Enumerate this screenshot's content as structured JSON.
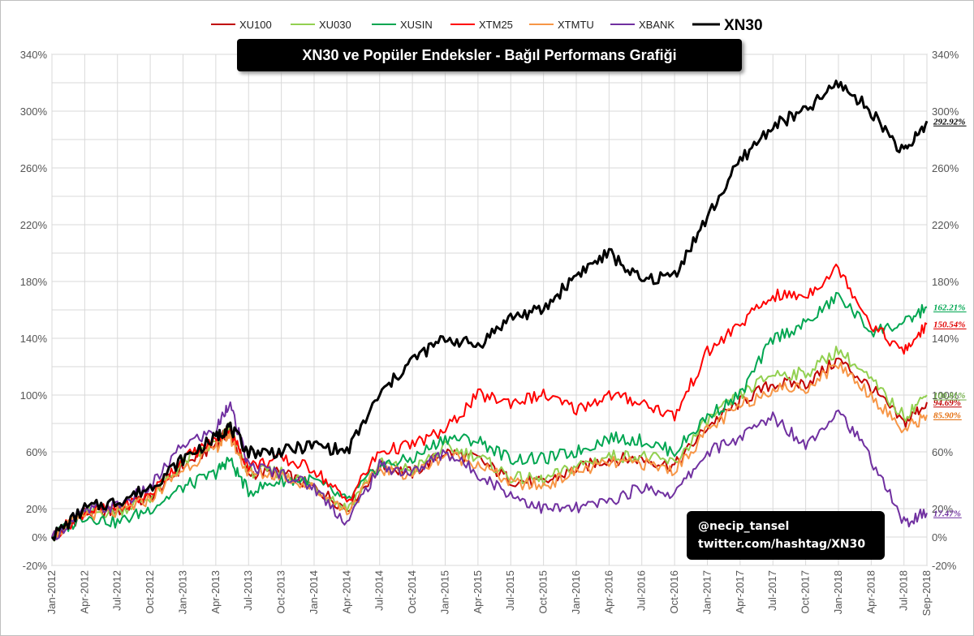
{
  "chart_data": {
    "type": "line",
    "title": "XN30 ve Popüler Endeksler - Bağıl Performans Grafiği",
    "xlabel": "",
    "ylabel": "",
    "ylim": [
      -20,
      340
    ],
    "y_ticks": [
      "-20%",
      "0%",
      "20%",
      "60%",
      "100%",
      "140%",
      "180%",
      "220%",
      "260%",
      "300%",
      "340%"
    ],
    "y_tick_values": [
      -20,
      0,
      20,
      60,
      100,
      140,
      180,
      220,
      260,
      300,
      340
    ],
    "y_grid_values": [
      -20,
      0,
      20,
      40,
      60,
      80,
      100,
      120,
      140,
      160,
      180,
      200,
      220,
      240,
      260,
      280,
      300,
      320,
      340
    ],
    "x_ticks": [
      "Jan-2012",
      "Apr-2012",
      "Jul-2012",
      "Oct-2012",
      "Jan-2013",
      "Apr-2013",
      "Jul-2013",
      "Oct-2013",
      "Jan-2014",
      "Apr-2014",
      "Jul-2014",
      "Oct-2014",
      "Jan-2015",
      "Apr-2015",
      "Jul-2015",
      "Oct-2015",
      "Jan-2016",
      "Apr-2016",
      "Jul-2016",
      "Oct-2016",
      "Jan-2017",
      "Apr-2017",
      "Jul-2017",
      "Oct-2017",
      "Jan-2018",
      "Apr-2018",
      "Jul-2018",
      "Sep-2018"
    ],
    "x_tick_positions": [
      0,
      1,
      2,
      3,
      4,
      5,
      6,
      7,
      8,
      9,
      10,
      11,
      12,
      13,
      14,
      15,
      16,
      17,
      18,
      19,
      20,
      21,
      22,
      23,
      24,
      25,
      26,
      26.7
    ],
    "grid": true,
    "legend_position": "top",
    "series": [
      {
        "name": "XU100",
        "color": "#c00000",
        "end_label": "94.69%",
        "end_color": "#c00000",
        "x": [
          0,
          1,
          2,
          3,
          4,
          5,
          5.4,
          6,
          7,
          8,
          9,
          10,
          11,
          12,
          13,
          14,
          15,
          16,
          17,
          18,
          19,
          20,
          21,
          22,
          23,
          24,
          25,
          26,
          26.7
        ],
        "y": [
          0,
          17,
          18,
          28,
          50,
          65,
          75,
          45,
          45,
          35,
          20,
          50,
          45,
          60,
          55,
          40,
          38,
          48,
          55,
          55,
          50,
          78,
          95,
          108,
          108,
          125,
          105,
          80,
          95
        ]
      },
      {
        "name": "XU030",
        "color": "#92d050",
        "end_label": "100.81%",
        "end_color": "#70ad47",
        "x": [
          0,
          1,
          2,
          3,
          4,
          5,
          5.4,
          6,
          7,
          8,
          9,
          10,
          11,
          12,
          13,
          14,
          15,
          16,
          17,
          18,
          19,
          20,
          21,
          22,
          23,
          24,
          25,
          26,
          26.7
        ],
        "y": [
          0,
          17,
          18,
          28,
          52,
          66,
          76,
          46,
          46,
          36,
          20,
          52,
          47,
          63,
          57,
          42,
          40,
          50,
          57,
          57,
          52,
          82,
          100,
          115,
          115,
          132,
          110,
          85,
          100
        ]
      },
      {
        "name": "XUSIN",
        "color": "#00a651",
        "end_label": "162.21%",
        "end_color": "#00a651",
        "x": [
          0,
          1,
          2,
          3,
          4,
          5,
          5.4,
          6,
          7,
          8,
          9,
          10,
          11,
          12,
          13,
          14,
          15,
          16,
          17,
          18,
          19,
          20,
          21,
          22,
          23,
          24,
          25,
          26,
          26.7
        ],
        "y": [
          0,
          15,
          10,
          20,
          35,
          45,
          55,
          32,
          40,
          40,
          25,
          50,
          55,
          70,
          68,
          55,
          55,
          60,
          70,
          68,
          60,
          85,
          100,
          140,
          150,
          170,
          145,
          150,
          162
        ]
      },
      {
        "name": "XTM25",
        "color": "#ff0000",
        "end_label": "150.54%",
        "end_color": "#e00000",
        "x": [
          0,
          1,
          2,
          3,
          4,
          5,
          5.4,
          6,
          7,
          8,
          9,
          10,
          11,
          12,
          13,
          14,
          15,
          16,
          17,
          18,
          19,
          20,
          21,
          22,
          23,
          24,
          25,
          26,
          26.7
        ],
        "y": [
          0,
          18,
          20,
          30,
          55,
          68,
          75,
          50,
          55,
          48,
          25,
          60,
          65,
          75,
          100,
          95,
          100,
          90,
          100,
          95,
          85,
          130,
          150,
          170,
          170,
          190,
          150,
          130,
          150
        ]
      },
      {
        "name": "XTMTU",
        "color": "#f79646",
        "end_label": "85.90%",
        "end_color": "#e46c0a",
        "x": [
          0,
          1,
          2,
          3,
          4,
          5,
          5.4,
          6,
          7,
          8,
          9,
          10,
          11,
          12,
          13,
          14,
          15,
          16,
          17,
          18,
          19,
          20,
          21,
          22,
          23,
          24,
          25,
          26,
          26.7
        ],
        "y": [
          0,
          16,
          17,
          27,
          48,
          63,
          72,
          44,
          44,
          34,
          18,
          48,
          44,
          58,
          52,
          38,
          36,
          46,
          52,
          52,
          47,
          75,
          92,
          105,
          105,
          122,
          100,
          75,
          86
        ]
      },
      {
        "name": "XBANK",
        "color": "#7030a0",
        "end_label": "17.47%",
        "end_color": "#7030a0",
        "x": [
          0,
          1,
          2,
          3,
          4,
          5,
          5.4,
          6,
          7,
          8,
          9,
          10,
          11,
          12,
          13,
          14,
          15,
          16,
          17,
          18,
          19,
          20,
          21,
          22,
          23,
          24,
          25,
          26,
          26.7
        ],
        "y": [
          0,
          18,
          22,
          35,
          65,
          75,
          95,
          50,
          45,
          35,
          10,
          50,
          45,
          60,
          45,
          30,
          20,
          20,
          25,
          35,
          30,
          60,
          70,
          85,
          65,
          90,
          55,
          10,
          17
        ]
      },
      {
        "name": "XN30",
        "color": "#000000",
        "end_label": "292.92%",
        "end_color": "#000000",
        "x": [
          0,
          1,
          2,
          3,
          4,
          5,
          5.4,
          6,
          7,
          8,
          9,
          10,
          11,
          12,
          13,
          14,
          15,
          16,
          17,
          18,
          19,
          20,
          21,
          22,
          23,
          24,
          25,
          26,
          26.7
        ],
        "y": [
          0,
          20,
          25,
          35,
          55,
          70,
          78,
          60,
          60,
          65,
          60,
          100,
          125,
          140,
          135,
          155,
          160,
          185,
          200,
          180,
          185,
          225,
          265,
          290,
          300,
          320,
          300,
          270,
          293
        ]
      }
    ]
  },
  "credit": {
    "line1": "@necip_tansel",
    "line2": "twitter.com/hashtag/XN30"
  }
}
